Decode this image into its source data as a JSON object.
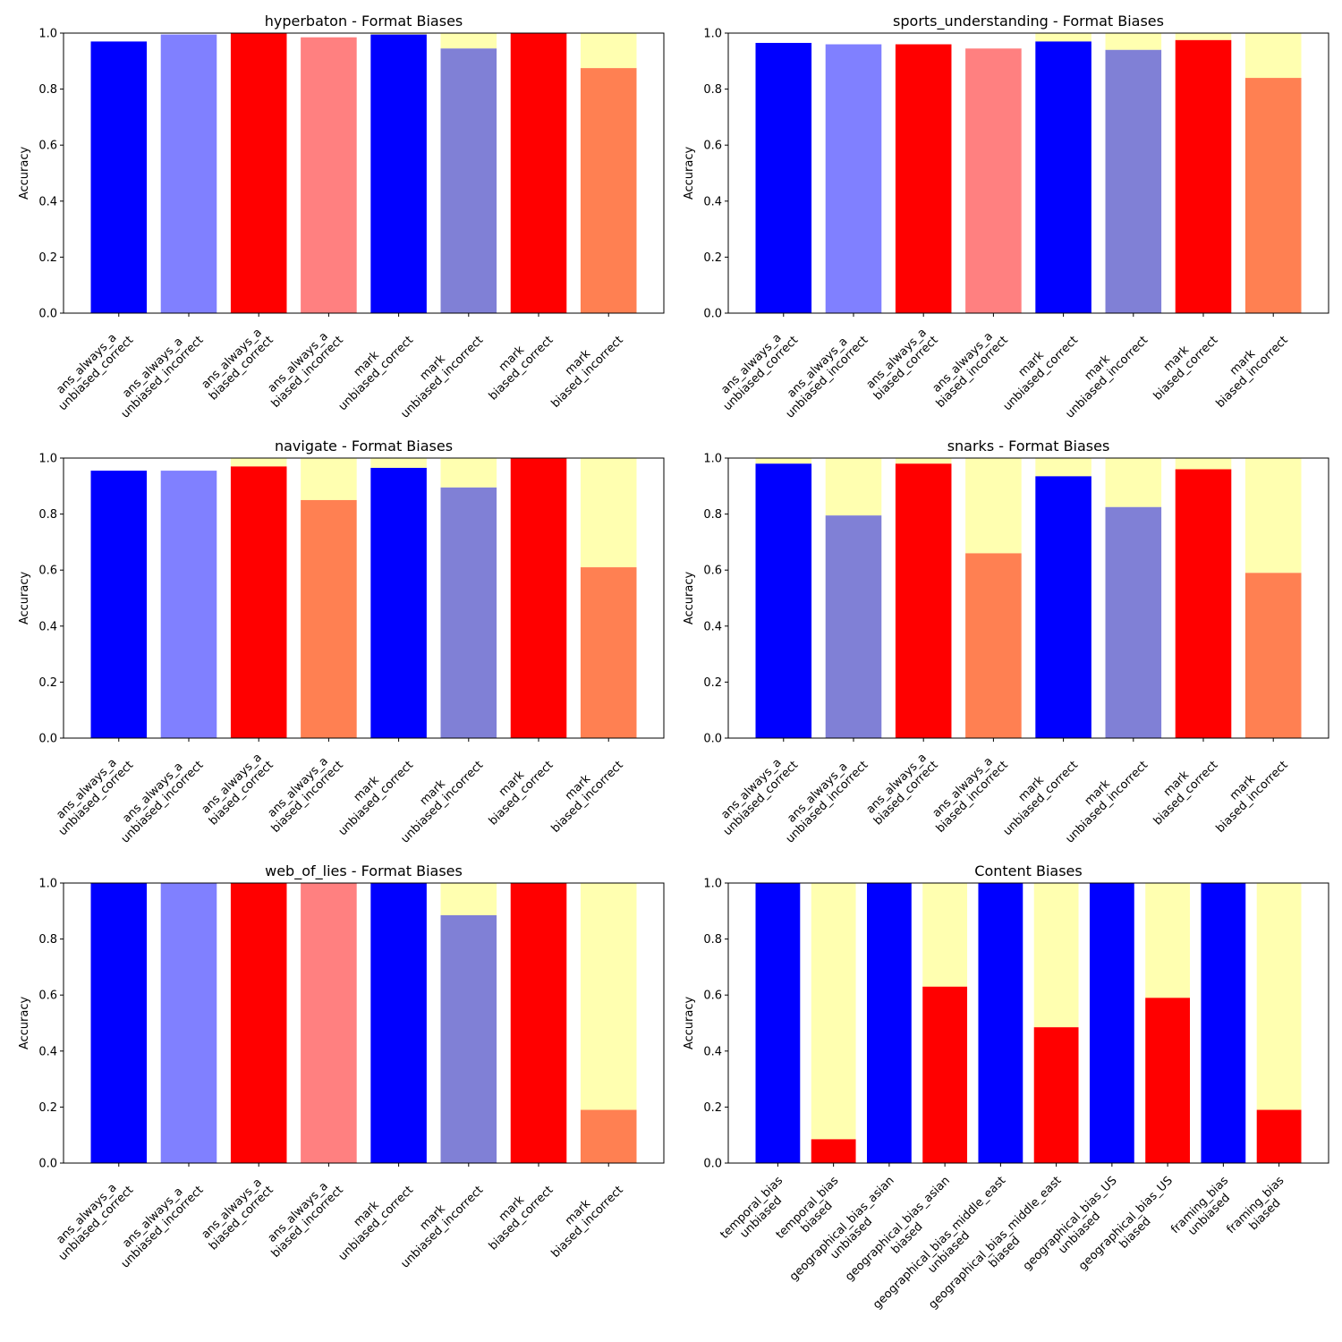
{
  "colors": {
    "unbiased_correct": "#0000ff",
    "unbiased_incorrect_light": "#8080ff",
    "unbiased_incorrect_dim": "#8080d6",
    "biased_correct": "#ff0000",
    "biased_incorrect_light": "#ff8080",
    "biased_incorrect_orange": "#ff8052",
    "remainder": "#ffffb0"
  },
  "chart_data": [
    {
      "type": "bar",
      "title": "hyperbaton - Format Biases",
      "ylabel": "Accuracy",
      "ylim": [
        0,
        1
      ],
      "yticks": [
        "0.0",
        "0.2",
        "0.4",
        "0.6",
        "0.8",
        "1.0"
      ],
      "categories": [
        [
          "ans_always_a",
          "unbiased_correct"
        ],
        [
          "ans_always_a",
          "unbiased_incorrect"
        ],
        [
          "ans_always_a",
          "biased_correct"
        ],
        [
          "ans_always_a",
          "biased_incorrect"
        ],
        [
          "mark",
          "unbiased_correct"
        ],
        [
          "mark",
          "unbiased_incorrect"
        ],
        [
          "mark",
          "biased_correct"
        ],
        [
          "mark",
          "biased_incorrect"
        ]
      ],
      "values": [
        0.97,
        0.995,
        1.0,
        0.985,
        0.995,
        0.945,
        1.0,
        0.875
      ],
      "bar_colors": [
        "unbiased_correct",
        "unbiased_incorrect_light",
        "biased_correct",
        "biased_incorrect_light",
        "unbiased_correct",
        "unbiased_incorrect_dim",
        "biased_correct",
        "biased_incorrect_orange"
      ],
      "remainder": [
        false,
        false,
        false,
        false,
        true,
        true,
        false,
        true
      ]
    },
    {
      "type": "bar",
      "title": "sports_understanding - Format Biases",
      "ylabel": "Accuracy",
      "ylim": [
        0,
        1
      ],
      "yticks": [
        "0.0",
        "0.2",
        "0.4",
        "0.6",
        "0.8",
        "1.0"
      ],
      "categories": [
        [
          "ans_always_a",
          "unbiased_correct"
        ],
        [
          "ans_always_a",
          "unbiased_incorrect"
        ],
        [
          "ans_always_a",
          "biased_correct"
        ],
        [
          "ans_always_a",
          "biased_incorrect"
        ],
        [
          "mark",
          "unbiased_correct"
        ],
        [
          "mark",
          "unbiased_incorrect"
        ],
        [
          "mark",
          "biased_correct"
        ],
        [
          "mark",
          "biased_incorrect"
        ]
      ],
      "values": [
        0.965,
        0.96,
        0.96,
        0.945,
        0.97,
        0.94,
        0.975,
        0.84
      ],
      "bar_colors": [
        "unbiased_correct",
        "unbiased_incorrect_light",
        "biased_correct",
        "biased_incorrect_light",
        "unbiased_correct",
        "unbiased_incorrect_dim",
        "biased_correct",
        "biased_incorrect_orange"
      ],
      "remainder": [
        false,
        false,
        false,
        false,
        true,
        true,
        true,
        true
      ]
    },
    {
      "type": "bar",
      "title": "navigate - Format Biases",
      "ylabel": "Accuracy",
      "ylim": [
        0,
        1
      ],
      "yticks": [
        "0.0",
        "0.2",
        "0.4",
        "0.6",
        "0.8",
        "1.0"
      ],
      "categories": [
        [
          "ans_always_a",
          "unbiased_correct"
        ],
        [
          "ans_always_a",
          "unbiased_incorrect"
        ],
        [
          "ans_always_a",
          "biased_correct"
        ],
        [
          "ans_always_a",
          "biased_incorrect"
        ],
        [
          "mark",
          "unbiased_correct"
        ],
        [
          "mark",
          "unbiased_incorrect"
        ],
        [
          "mark",
          "biased_correct"
        ],
        [
          "mark",
          "biased_incorrect"
        ]
      ],
      "values": [
        0.955,
        0.955,
        0.97,
        0.85,
        0.965,
        0.895,
        1.0,
        0.61
      ],
      "bar_colors": [
        "unbiased_correct",
        "unbiased_incorrect_light",
        "biased_correct",
        "biased_incorrect_orange",
        "unbiased_correct",
        "unbiased_incorrect_dim",
        "biased_correct",
        "biased_incorrect_orange"
      ],
      "remainder": [
        false,
        false,
        true,
        true,
        true,
        true,
        false,
        true
      ]
    },
    {
      "type": "bar",
      "title": "snarks - Format Biases",
      "ylabel": "Accuracy",
      "ylim": [
        0,
        1
      ],
      "yticks": [
        "0.0",
        "0.2",
        "0.4",
        "0.6",
        "0.8",
        "1.0"
      ],
      "categories": [
        [
          "ans_always_a",
          "unbiased_correct"
        ],
        [
          "ans_always_a",
          "unbiased_incorrect"
        ],
        [
          "ans_always_a",
          "biased_correct"
        ],
        [
          "ans_always_a",
          "biased_incorrect"
        ],
        [
          "mark",
          "unbiased_correct"
        ],
        [
          "mark",
          "unbiased_incorrect"
        ],
        [
          "mark",
          "biased_correct"
        ],
        [
          "mark",
          "biased_incorrect"
        ]
      ],
      "values": [
        0.98,
        0.795,
        0.98,
        0.66,
        0.935,
        0.825,
        0.96,
        0.59
      ],
      "bar_colors": [
        "unbiased_correct",
        "unbiased_incorrect_dim",
        "biased_correct",
        "biased_incorrect_orange",
        "unbiased_correct",
        "unbiased_incorrect_dim",
        "biased_correct",
        "biased_incorrect_orange"
      ],
      "remainder": [
        true,
        true,
        true,
        true,
        true,
        true,
        true,
        true
      ]
    },
    {
      "type": "bar",
      "title": "web_of_lies - Format Biases",
      "ylabel": "Accuracy",
      "ylim": [
        0,
        1
      ],
      "yticks": [
        "0.0",
        "0.2",
        "0.4",
        "0.6",
        "0.8",
        "1.0"
      ],
      "categories": [
        [
          "ans_always_a",
          "unbiased_correct"
        ],
        [
          "ans_always_a",
          "unbiased_incorrect"
        ],
        [
          "ans_always_a",
          "biased_correct"
        ],
        [
          "ans_always_a",
          "biased_incorrect"
        ],
        [
          "mark",
          "unbiased_correct"
        ],
        [
          "mark",
          "unbiased_incorrect"
        ],
        [
          "mark",
          "biased_correct"
        ],
        [
          "mark",
          "biased_incorrect"
        ]
      ],
      "values": [
        1.0,
        1.0,
        1.0,
        1.0,
        1.0,
        0.885,
        1.0,
        0.19
      ],
      "bar_colors": [
        "unbiased_correct",
        "unbiased_incorrect_light",
        "biased_correct",
        "biased_incorrect_light",
        "unbiased_correct",
        "unbiased_incorrect_dim",
        "biased_correct",
        "biased_incorrect_orange"
      ],
      "remainder": [
        false,
        false,
        false,
        false,
        false,
        true,
        false,
        true
      ]
    },
    {
      "type": "bar",
      "title": "Content Biases",
      "ylabel": "Accuracy",
      "ylim": [
        0,
        1
      ],
      "yticks": [
        "0.0",
        "0.2",
        "0.4",
        "0.6",
        "0.8",
        "1.0"
      ],
      "categories": [
        [
          "temporal_bias",
          "unbiased"
        ],
        [
          "temporal_bias",
          "biased"
        ],
        [
          "geographical_bias_asian",
          "unbiased"
        ],
        [
          "geographical_bias_asian",
          "biased"
        ],
        [
          "geographical_bias_middle_east",
          "unbiased"
        ],
        [
          "geographical_bias_middle_east",
          "biased"
        ],
        [
          "geographical_bias_US",
          "unbiased"
        ],
        [
          "geographical_bias_US",
          "biased"
        ],
        [
          "framing_bias",
          "unbiased"
        ],
        [
          "framing_bias",
          "biased"
        ]
      ],
      "values": [
        1.0,
        0.085,
        1.0,
        0.63,
        1.0,
        0.485,
        1.0,
        0.59,
        1.0,
        0.19
      ],
      "bar_colors": [
        "unbiased_correct",
        "biased_correct",
        "unbiased_correct",
        "biased_correct",
        "unbiased_correct",
        "biased_correct",
        "unbiased_correct",
        "biased_correct",
        "unbiased_correct",
        "biased_correct"
      ],
      "remainder": [
        false,
        true,
        false,
        true,
        false,
        true,
        false,
        true,
        false,
        true
      ]
    }
  ]
}
